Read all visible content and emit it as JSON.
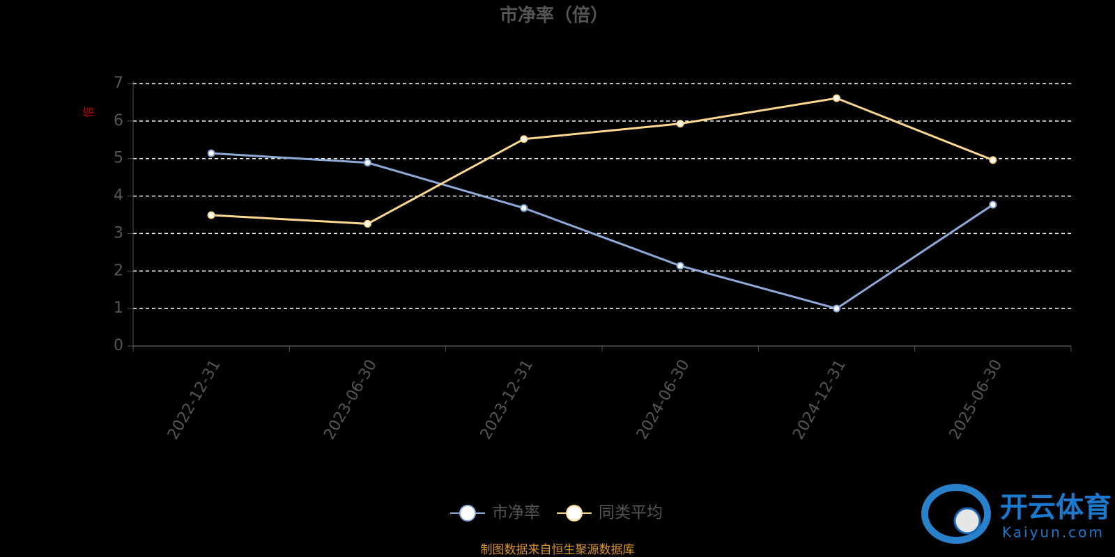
{
  "chart_data": {
    "type": "line",
    "title": "市净率（倍）",
    "y_axis_label": "倍",
    "categories": [
      "2022-12-31",
      "2023-06-30",
      "2023-12-31",
      "2024-06-30",
      "2024-12-31",
      "2025-06-30"
    ],
    "series": [
      {
        "name": "市净率",
        "color": "#8eaad9",
        "values": [
          5.14,
          4.89,
          3.68,
          2.14,
          1.0,
          3.77
        ]
      },
      {
        "name": "同类平均",
        "color": "#fdd88f",
        "values": [
          3.49,
          3.26,
          5.52,
          5.93,
          6.61,
          4.96
        ]
      }
    ],
    "ylim": [
      0,
      7
    ],
    "yticks": [
      0,
      1,
      2,
      3,
      4,
      5,
      6,
      7
    ],
    "grid": true,
    "legend": "bottom",
    "source": "制图数据来自恒生聚源数据库",
    "watermark": {
      "name": "开云体育",
      "url": "Kaiyun.com"
    }
  }
}
